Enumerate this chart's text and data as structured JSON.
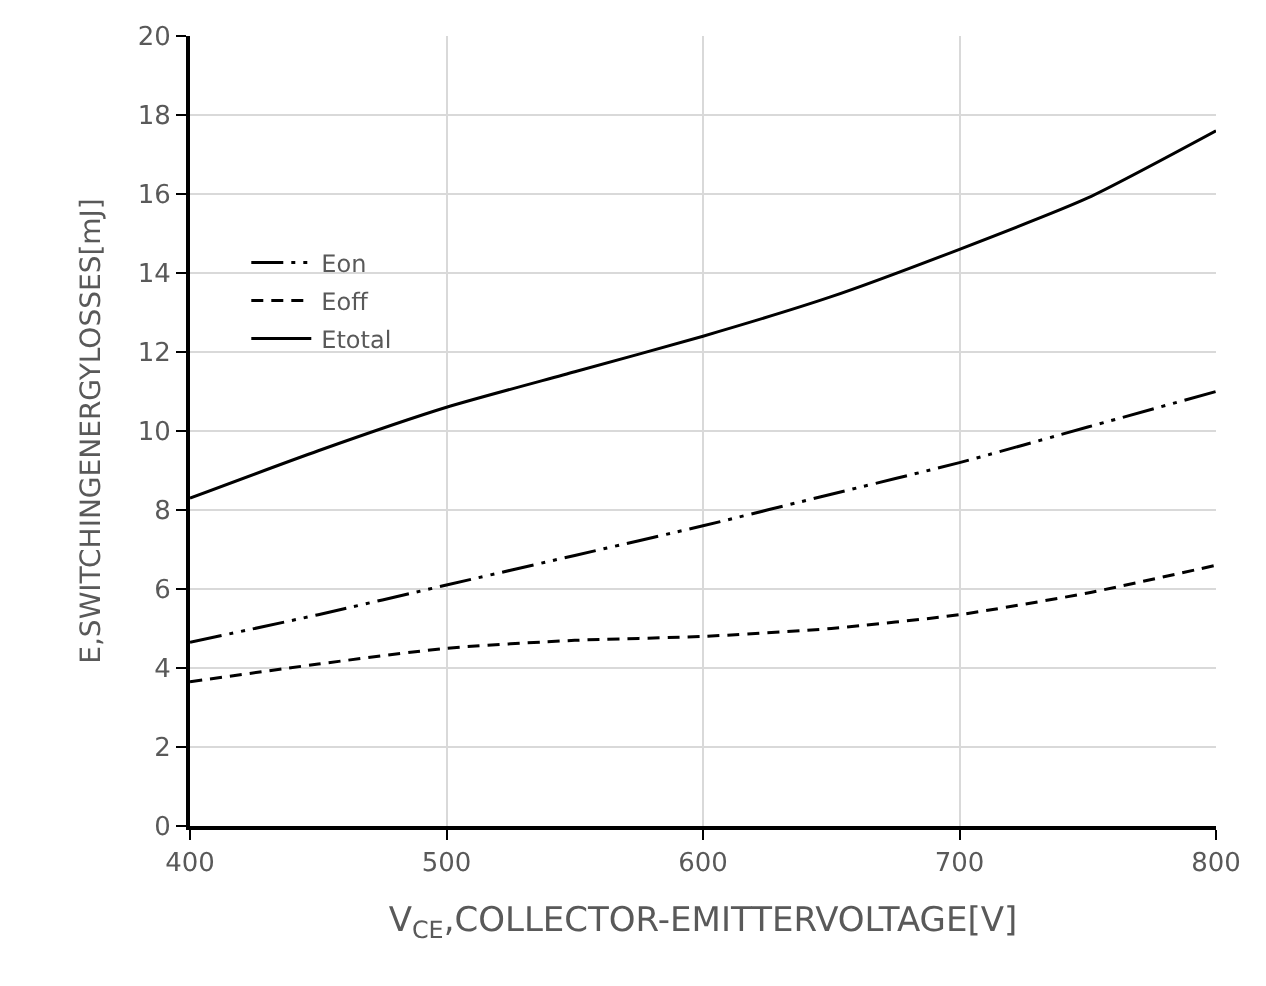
{
  "chart_data": {
    "type": "line",
    "xlabel": "V$_{CE}$,COLLECTOR-EMITTERVOLTAGE[V]",
    "ylabel": "E,SWITCHINGENERGYLOSSES[mJ]",
    "x": [
      400,
      450,
      500,
      550,
      600,
      650,
      700,
      750,
      800
    ],
    "series": [
      {
        "name": "Eon",
        "color": "#000000",
        "line_style": "dashdotdot",
        "values": [
          4.65,
          5.35,
          6.1,
          6.85,
          7.6,
          8.4,
          9.2,
          10.1,
          11.0
        ]
      },
      {
        "name": "Eoff",
        "color": "#000000",
        "line_style": "dashed",
        "values": [
          3.65,
          4.1,
          4.5,
          4.7,
          4.8,
          5.0,
          5.35,
          5.9,
          6.6
        ]
      },
      {
        "name": "Etotal",
        "color": "#000000",
        "line_style": "solid",
        "values": [
          8.3,
          9.5,
          10.6,
          11.5,
          12.4,
          13.4,
          14.6,
          15.9,
          17.6
        ]
      }
    ],
    "xlim": [
      400,
      800
    ],
    "xticks": [
      400,
      500,
      600,
      700,
      800
    ],
    "ylim": [
      0,
      20
    ],
    "yticks": [
      0,
      2,
      4,
      6,
      8,
      10,
      12,
      14,
      16,
      18,
      20
    ],
    "grid": true,
    "legend": "top left",
    "marker": "none"
  }
}
